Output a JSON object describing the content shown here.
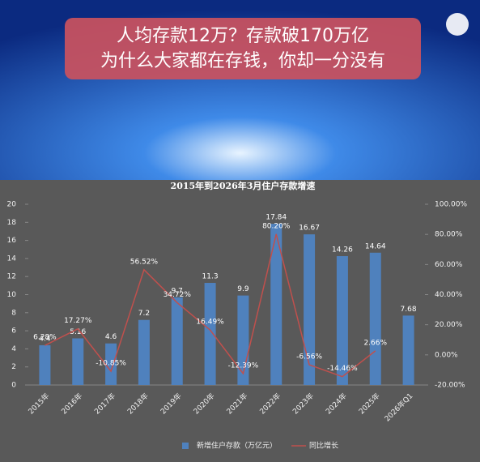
{
  "header": {
    "lines": [
      "人均存款12万？存款破170万亿",
      "为什么大家都在存钱，你却一分没有"
    ]
  },
  "chart_data": {
    "type": "bar_line",
    "title": "2015年到2026年3月住户存款增速",
    "categories": [
      "2015年",
      "2016年",
      "2017年",
      "2018年",
      "2019年",
      "2020年",
      "2021年",
      "2022年",
      "2023年",
      "2024年",
      "2025年",
      "2026年Q1"
    ],
    "series": [
      {
        "name": "新增住户存款（万亿元）",
        "type": "bar",
        "color": "#4f81bd",
        "values": [
          4.4,
          5.16,
          4.6,
          7.2,
          9.7,
          11.3,
          9.9,
          17.84,
          16.67,
          14.26,
          14.64,
          7.68
        ]
      },
      {
        "name": "同比增长",
        "type": "line",
        "axis": "y2",
        "color": "#c0504d",
        "values": [
          6.28,
          17.27,
          -10.85,
          56.52,
          34.72,
          16.49,
          -12.39,
          80.2,
          -6.56,
          -14.46,
          2.66,
          null
        ],
        "value_labels": [
          "6.28%",
          "17.27%",
          "-10.85%",
          "56.52%",
          "34.72%",
          "16.49%",
          "-12.39%",
          "80.20%",
          "-6.56%",
          "-14.46%",
          "2.66%",
          null
        ]
      }
    ],
    "ylim": [
      0,
      20
    ],
    "yticks": [
      0,
      2,
      4,
      6,
      8,
      10,
      12,
      14,
      16,
      18,
      20
    ],
    "y2lim": [
      -20,
      100
    ],
    "y2ticks": [
      {
        "value": -20,
        "label": "-20.00%"
      },
      {
        "value": 0,
        "label": "0.00%"
      },
      {
        "value": 20,
        "label": "20.00%"
      },
      {
        "value": 40,
        "label": "40.00%"
      },
      {
        "value": 60,
        "label": "60.00%"
      },
      {
        "value": 80,
        "label": "80.00%"
      },
      {
        "value": 100,
        "label": "100.00%"
      }
    ],
    "grid": false,
    "legend": "bottom"
  }
}
